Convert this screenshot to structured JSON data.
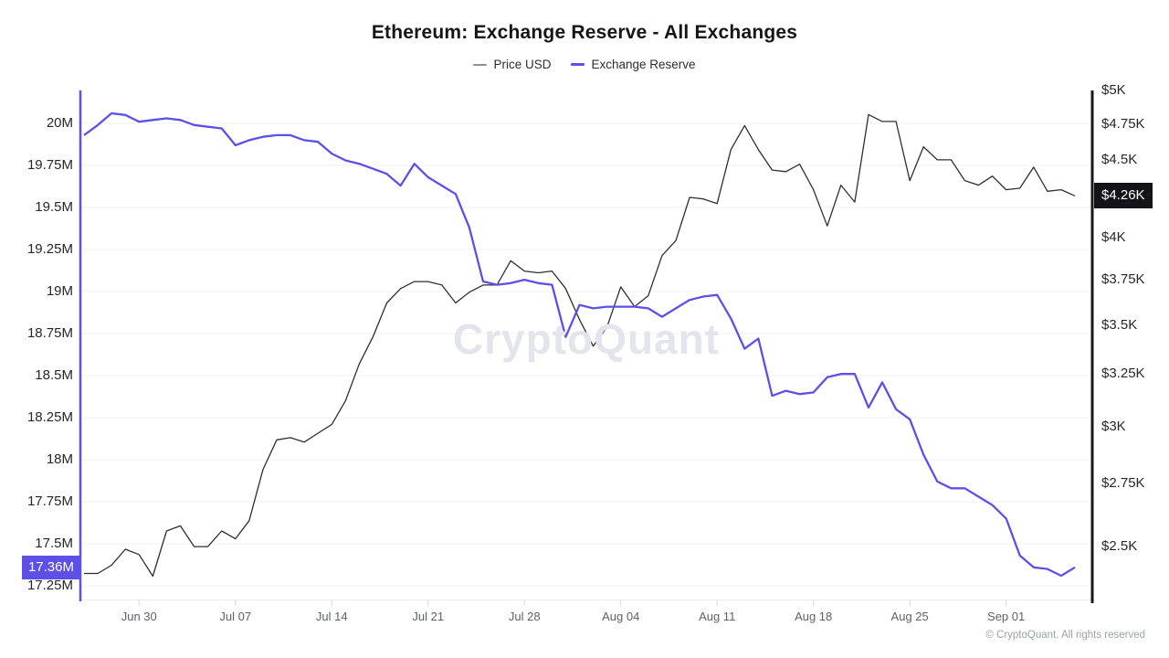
{
  "title": "Ethereum: Exchange Reserve - All Exchanges",
  "legend": {
    "items": [
      {
        "label": "Price USD",
        "swatch_color": "#8f8f96",
        "swatch_height": 2
      },
      {
        "label": "Exchange Reserve",
        "swatch_color": "#5c50e6",
        "swatch_height": 3
      }
    ]
  },
  "badges": {
    "reserve_label": "17.36M",
    "reserve_value": 17.36,
    "price_label": "$4.26K",
    "price_value": 4.26,
    "caret": "‹"
  },
  "watermark": "CryptoQuant",
  "copyright": "© CryptoQuant. All rights reserved",
  "colors": {
    "reserve_line": "#5c50e6",
    "price_line": "#2f2f2f",
    "left_spine": "#5c50e6",
    "right_spine": "#1a1a1a",
    "gridline": "#f1f1f5",
    "x_tick": "#d8d8de",
    "baseline": "#e9e9ee"
  },
  "chart_data": {
    "type": "line",
    "title": "Ethereum: Exchange Reserve - All Exchanges",
    "grid": true,
    "legend_position": "top",
    "x": [
      "Jun 26",
      "Jun 27",
      "Jun 28",
      "Jun 29",
      "Jun 30",
      "Jul 01",
      "Jul 02",
      "Jul 03",
      "Jul 04",
      "Jul 05",
      "Jul 06",
      "Jul 07",
      "Jul 08",
      "Jul 09",
      "Jul 10",
      "Jul 11",
      "Jul 12",
      "Jul 13",
      "Jul 14",
      "Jul 15",
      "Jul 16",
      "Jul 17",
      "Jul 18",
      "Jul 19",
      "Jul 20",
      "Jul 21",
      "Jul 22",
      "Jul 23",
      "Jul 24",
      "Jul 25",
      "Jul 26",
      "Jul 27",
      "Jul 28",
      "Jul 29",
      "Jul 30",
      "Jul 31",
      "Aug 01",
      "Aug 02",
      "Aug 03",
      "Aug 04",
      "Aug 05",
      "Aug 06",
      "Aug 07",
      "Aug 08",
      "Aug 09",
      "Aug 10",
      "Aug 11",
      "Aug 12",
      "Aug 13",
      "Aug 14",
      "Aug 15",
      "Aug 16",
      "Aug 17",
      "Aug 18",
      "Aug 19",
      "Aug 20",
      "Aug 21",
      "Aug 22",
      "Aug 23",
      "Aug 24",
      "Aug 25",
      "Aug 26",
      "Aug 27",
      "Aug 28",
      "Aug 29",
      "Aug 30",
      "Aug 31",
      "Sep 01",
      "Sep 02",
      "Sep 03",
      "Sep 04",
      "Sep 05",
      "Sep 06"
    ],
    "x_tick_labels": [
      "Jun 30",
      "Jul 07",
      "Jul 14",
      "Jul 21",
      "Jul 28",
      "Aug 04",
      "Aug 11",
      "Aug 18",
      "Aug 25",
      "Sep 01"
    ],
    "series": [
      {
        "name": "Price USD",
        "axis": "right",
        "unit": "thousand USD",
        "color": "#2f2f2f",
        "width": 1.3,
        "values": [
          2.4,
          2.4,
          2.43,
          2.49,
          2.47,
          2.39,
          2.56,
          2.58,
          2.5,
          2.5,
          2.56,
          2.53,
          2.6,
          2.81,
          2.94,
          2.95,
          2.93,
          2.97,
          3.01,
          3.12,
          3.3,
          3.44,
          3.62,
          3.7,
          3.74,
          3.74,
          3.72,
          3.62,
          3.68,
          3.72,
          3.72,
          3.86,
          3.8,
          3.79,
          3.8,
          3.7,
          3.53,
          3.39,
          3.49,
          3.71,
          3.6,
          3.66,
          3.89,
          3.98,
          4.25,
          4.24,
          4.21,
          4.57,
          4.74,
          4.57,
          4.43,
          4.42,
          4.47,
          4.3,
          4.07,
          4.33,
          4.22,
          4.82,
          4.77,
          4.77,
          4.36,
          4.59,
          4.5,
          4.5,
          4.36,
          4.33,
          4.39,
          4.3,
          4.31,
          4.45,
          4.29,
          4.3,
          4.26
        ]
      },
      {
        "name": "Exchange Reserve",
        "axis": "left",
        "unit": "million ETH",
        "color": "#5c50e6",
        "width": 2.3,
        "values": [
          19.93,
          19.99,
          20.06,
          20.05,
          20.01,
          20.02,
          20.03,
          20.02,
          19.99,
          19.98,
          19.97,
          19.87,
          19.9,
          19.92,
          19.93,
          19.93,
          19.9,
          19.89,
          19.82,
          19.78,
          19.76,
          19.73,
          19.7,
          19.63,
          19.76,
          19.68,
          19.63,
          19.58,
          19.38,
          19.06,
          19.04,
          19.05,
          19.07,
          19.05,
          19.04,
          18.73,
          18.92,
          18.9,
          18.91,
          18.91,
          18.91,
          18.9,
          18.85,
          18.9,
          18.95,
          18.97,
          18.98,
          18.84,
          18.66,
          18.72,
          18.38,
          18.41,
          18.39,
          18.4,
          18.49,
          18.51,
          18.51,
          18.31,
          18.46,
          18.3,
          18.24,
          18.03,
          17.87,
          17.83,
          17.83,
          17.78,
          17.73,
          17.65,
          17.43,
          17.36,
          17.35,
          17.31,
          17.36
        ]
      }
    ],
    "left_axis": {
      "title": "Exchange Reserve",
      "scale": "linear",
      "range": [
        17.17,
        20.2
      ],
      "ticks": [
        "20M",
        "19.75M",
        "19.5M",
        "19.25M",
        "19M",
        "18.75M",
        "18.5M",
        "18.25M",
        "18M",
        "17.75M",
        "17.5M",
        "17.25M"
      ],
      "tick_values": [
        20,
        19.75,
        19.5,
        19.25,
        19,
        18.75,
        18.5,
        18.25,
        18,
        17.75,
        17.5,
        17.25
      ]
    },
    "right_axis": {
      "title": "Price USD",
      "scale": "log",
      "range": [
        2.31,
        5.0
      ],
      "ticks": [
        "$5K",
        "$4.75K",
        "$4.5K",
        "$4K",
        "$3.75K",
        "$3.5K",
        "$3.25K",
        "$3K",
        "$2.75K",
        "$2.5K"
      ],
      "tick_values": [
        5,
        4.75,
        4.5,
        4,
        3.75,
        3.5,
        3.25,
        3,
        2.75,
        2.5
      ]
    }
  }
}
